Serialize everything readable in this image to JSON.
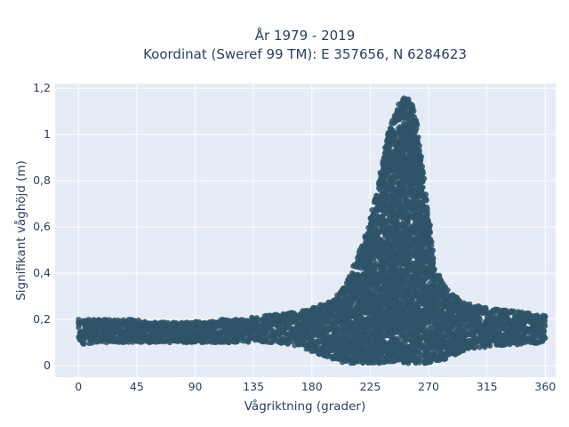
{
  "chart_data": {
    "type": "scatter",
    "title_line1": "År 1979 - 2019",
    "title_line2": "Koordinat (Sweref 99 TM): E 357656, N 6284623",
    "xlabel": "Vågriktning (grader)",
    "ylabel": "Signifikant våghöjd (m)",
    "xlim": [
      -18,
      368
    ],
    "ylim": [
      -0.05,
      1.22
    ],
    "xticks": [
      0,
      45,
      90,
      135,
      180,
      225,
      270,
      315,
      360
    ],
    "xtick_labels": [
      "0",
      "45",
      "90",
      "135",
      "180",
      "225",
      "270",
      "315",
      "360"
    ],
    "yticks": [
      0,
      0.2,
      0.4,
      0.6,
      0.8,
      1,
      1.2
    ],
    "ytick_labels": [
      "0",
      "0,2",
      "0,4",
      "0,6",
      "0,8",
      "1",
      "1,2"
    ],
    "grid": true,
    "marker_color": "#2f5469",
    "background_color": "#e5ecf6",
    "envelope": {
      "direction": [
        0,
        15,
        30,
        45,
        60,
        75,
        90,
        105,
        120,
        135,
        150,
        165,
        180,
        195,
        205,
        215,
        225,
        232,
        238,
        244,
        250,
        256,
        262,
        268,
        275,
        285,
        300,
        315,
        330,
        345,
        360
      ],
      "min_height": [
        0.09,
        0.1,
        0.1,
        0.1,
        0.1,
        0.1,
        0.1,
        0.1,
        0.1,
        0.1,
        0.1,
        0.09,
        0.06,
        0.03,
        0.01,
        0.01,
        0.01,
        0.01,
        0.01,
        0.01,
        0.01,
        0.01,
        0.01,
        0.01,
        0.02,
        0.03,
        0.07,
        0.08,
        0.09,
        0.09,
        0.1
      ],
      "max_height": [
        0.2,
        0.2,
        0.2,
        0.2,
        0.19,
        0.19,
        0.19,
        0.2,
        0.2,
        0.21,
        0.22,
        0.23,
        0.25,
        0.28,
        0.34,
        0.47,
        0.63,
        0.8,
        1.0,
        1.1,
        1.16,
        1.15,
        1.05,
        0.75,
        0.42,
        0.33,
        0.27,
        0.25,
        0.24,
        0.23,
        0.22
      ]
    }
  }
}
